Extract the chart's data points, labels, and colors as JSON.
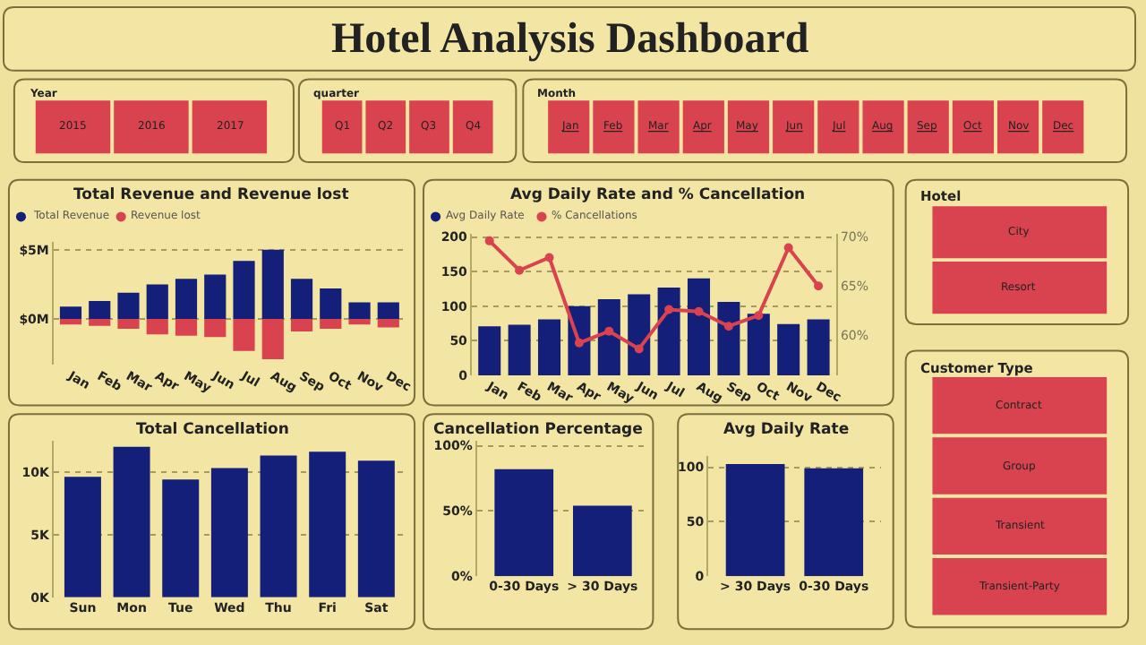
{
  "chart_data": [
    {
      "type": "other",
      "title": "Hotel Analysis Dashboard"
    },
    {
      "type": "other",
      "title": "Year",
      "categories": [
        "2015",
        "2016",
        "2017"
      ],
      "color": "#d9434f"
    },
    {
      "type": "other",
      "title": "quarter",
      "categories": [
        "Q1",
        "Q2",
        "Q3",
        "Q4"
      ],
      "color": "#d9434f"
    },
    {
      "type": "other",
      "title": "Month",
      "categories": [
        "Jan",
        "Feb",
        "Mar",
        "Apr",
        "May",
        "Jun",
        "Jul",
        "Aug",
        "Sep",
        "Oct",
        "Nov",
        "Dec"
      ],
      "color": "#d9434f"
    },
    {
      "type": "bar",
      "title": "Total Revenue and Revenue lost",
      "categories": [
        "Jan",
        "Feb",
        "Mar",
        "Apr",
        "May",
        "Jun",
        "Jul",
        "Aug",
        "Sep",
        "Oct",
        "Nov",
        "Dec"
      ],
      "stacked": true,
      "series": [
        {
          "name": "Total Revenue",
          "color": "#131f78",
          "values": [
            0.9,
            1.3,
            1.9,
            2.5,
            2.9,
            3.2,
            4.2,
            5.0,
            2.9,
            2.2,
            1.2,
            1.2
          ]
        },
        {
          "name": "Revenue lost",
          "color": "#d9434f",
          "values": [
            -0.4,
            -0.5,
            -0.7,
            -1.1,
            -1.2,
            -1.3,
            -2.3,
            -2.9,
            -0.9,
            -0.7,
            -0.4,
            -0.6
          ]
        }
      ],
      "ylim": [
        -3.3,
        5.6
      ],
      "yticks": [
        {
          "value": 0,
          "label": "$0M"
        },
        {
          "value": 5,
          "label": "$5M"
        }
      ],
      "grid": "y",
      "legend": "top left"
    },
    {
      "type": "bar",
      "title": "Avg Daily Rate and % Cancellation",
      "categories": [
        "Jan",
        "Feb",
        "Mar",
        "Apr",
        "May",
        "Jun",
        "Jul",
        "Aug",
        "Sep",
        "Oct",
        "Nov",
        "Dec"
      ],
      "series": [
        {
          "name": "Avg Daily Rate",
          "color": "#131f78",
          "values": [
            71,
            73,
            81,
            100,
            110,
            117,
            127,
            140,
            106,
            89,
            74,
            81
          ]
        },
        {
          "name": "% Cancellations",
          "type": "line",
          "axis": "y2",
          "color": "#d9434f",
          "values": [
            69.6,
            66.6,
            67.9,
            59.2,
            60.4,
            58.6,
            62.6,
            62.4,
            60.9,
            62.0,
            68.9,
            65.0
          ]
        }
      ],
      "ylim": [
        0,
        205
      ],
      "yticks": [
        0,
        50,
        100,
        150,
        200
      ],
      "y2lim": [
        55.9,
        70.35
      ],
      "y2ticks": [
        {
          "value": 60,
          "label": "60%"
        },
        {
          "value": 65,
          "label": "65%"
        },
        {
          "value": 70,
          "label": "70%"
        }
      ],
      "grid": "y",
      "legend": "top left",
      "marker": "circle",
      "line_style": "solid"
    },
    {
      "type": "other",
      "title": "Hotel",
      "categories": [
        "City",
        "Resort"
      ],
      "color": "#d9434f"
    },
    {
      "type": "other",
      "title": "Customer Type",
      "categories": [
        "Contract",
        "Group",
        "Transient",
        "Transient-Party"
      ],
      "color": "#d9434f"
    },
    {
      "type": "bar",
      "title": "Total Cancellation",
      "categories": [
        "Sun",
        "Mon",
        "Tue",
        "Wed",
        "Thu",
        "Fri",
        "Sat"
      ],
      "color": "#131f78",
      "values": [
        9.6,
        12.0,
        9.4,
        10.3,
        11.3,
        11.6,
        10.9
      ],
      "ylim": [
        0,
        12.5
      ],
      "yticks": [
        {
          "value": 0,
          "label": "0K"
        },
        {
          "value": 5,
          "label": "5K"
        },
        {
          "value": 10,
          "label": "10K"
        }
      ],
      "grid": "y"
    },
    {
      "type": "bar",
      "title": "Cancellation Percentage",
      "categories": [
        "0-30 Days",
        "> 30 Days"
      ],
      "color": "#131f78",
      "values": [
        82,
        54
      ],
      "ylim": [
        0,
        104
      ],
      "yticks": [
        {
          "value": 0,
          "label": "0%"
        },
        {
          "value": 50,
          "label": "50%"
        },
        {
          "value": 100,
          "label": "100%"
        }
      ],
      "grid": "y"
    },
    {
      "type": "bar",
      "title": "Avg Daily Rate",
      "categories": [
        "> 30 Days",
        "0-30 Days"
      ],
      "color": "#131f78",
      "values": [
        103,
        99
      ],
      "ylim": [
        0,
        110
      ],
      "yticks": [
        0,
        50,
        100
      ],
      "grid": "y"
    }
  ]
}
